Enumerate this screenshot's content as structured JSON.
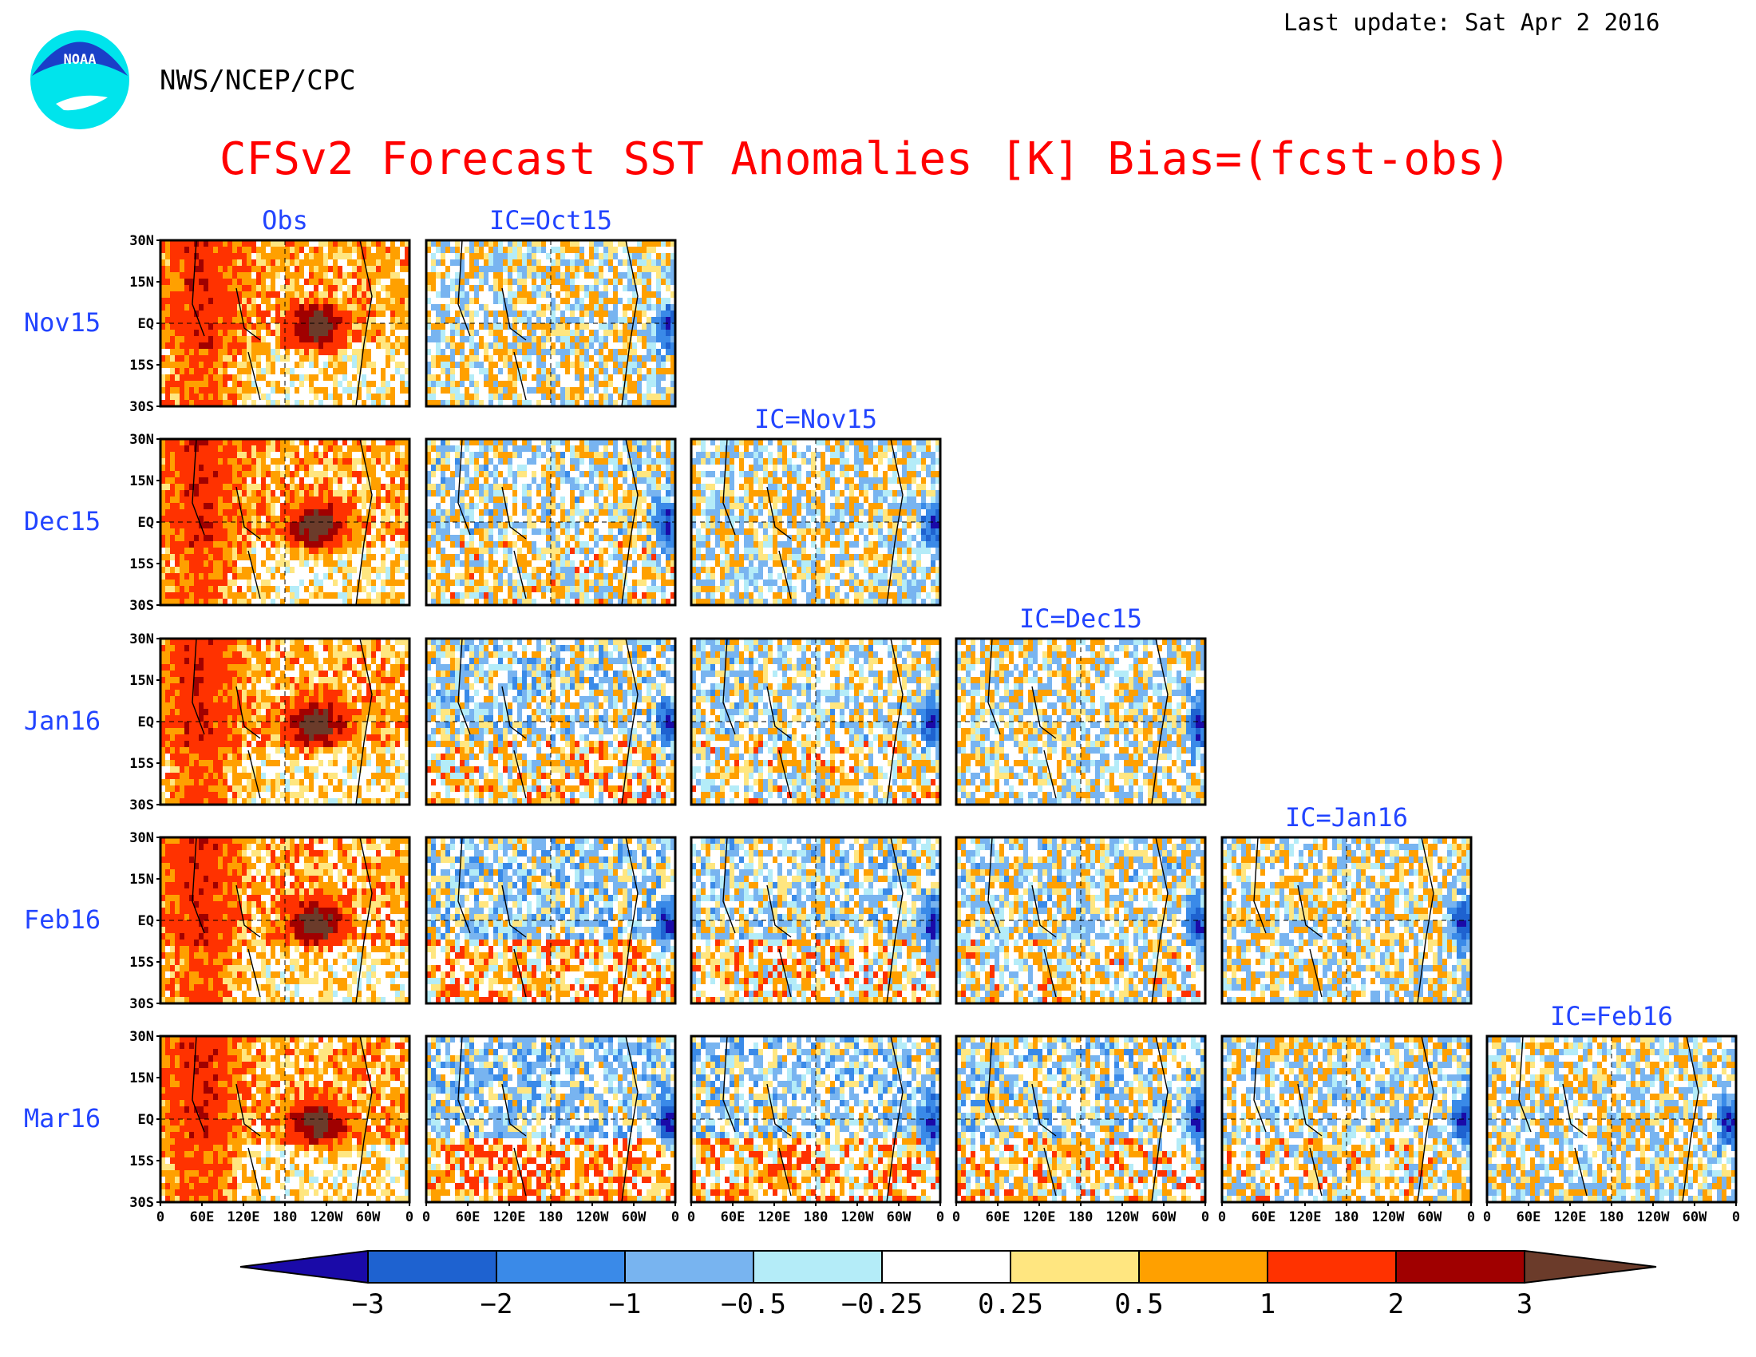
{
  "header": {
    "last_update": "Last update: Sat Apr 2 2016",
    "agency": "NWS/NCEP/CPC",
    "logo_text": "NOAA",
    "title": "CFSv2 Forecast SST Anomalies [K] Bias=(fcst-obs)"
  },
  "colors": {
    "title": "#ff0000",
    "labels": "#2244ff",
    "text": "#000000"
  },
  "chart_data": {
    "type": "heatmap",
    "title": "CFSv2 Forecast SST Anomalies [K] Bias=(fcst-obs)",
    "units": "K",
    "column_headers": [
      "Obs",
      "IC=Oct15",
      "IC=Nov15",
      "IC=Dec15",
      "IC=Jan16",
      "IC=Feb16"
    ],
    "row_labels": [
      "Nov15",
      "Dec15",
      "Jan16",
      "Feb16",
      "Mar16"
    ],
    "panel_layout": "lower-triangular: row i shows Obs plus the forecasts from ICs made before that month",
    "y_tick_labels": [
      "30N",
      "15N",
      "EQ",
      "15S",
      "30S"
    ],
    "x_tick_labels": [
      "0",
      "60E",
      "120E",
      "180",
      "120W",
      "60W",
      "0"
    ],
    "x_range": [
      "0",
      "0"
    ],
    "y_range": [
      "30S",
      "30N"
    ],
    "colorbar": {
      "ticks": [
        "−3",
        "−2",
        "−1",
        "−0.5",
        "−0.25",
        "0.25",
        "0.5",
        "1",
        "2",
        "3"
      ],
      "colors": [
        "#1a0aa8",
        "#1e62d0",
        "#3a8ae8",
        "#78b4f0",
        "#b4ecf8",
        "#ffffff",
        "#ffe680",
        "#ffa000",
        "#ff3200",
        "#a00000",
        "#6b3b2a"
      ]
    }
  }
}
